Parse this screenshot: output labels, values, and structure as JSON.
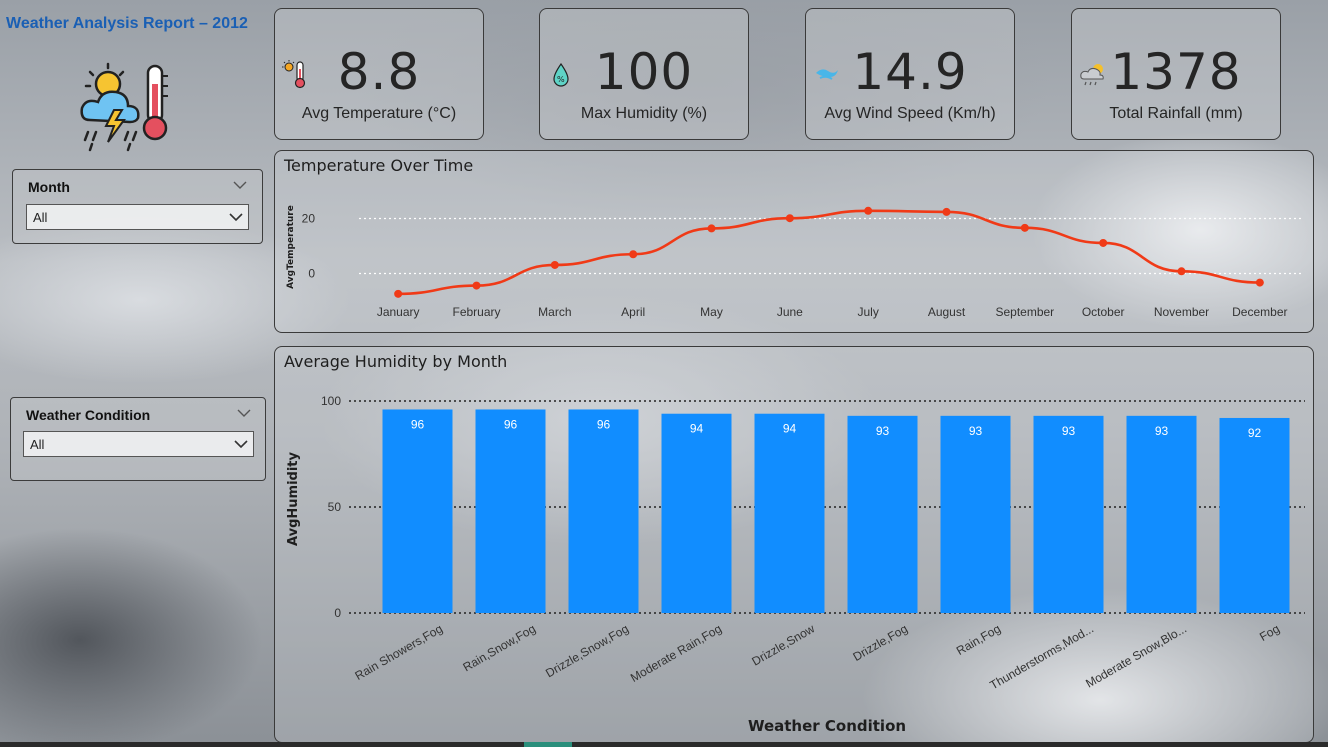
{
  "report": {
    "title": "Weather Analysis Report – 2012"
  },
  "slicers": {
    "month": {
      "title": "Month",
      "value": "All"
    },
    "weather_condition": {
      "title": "Weather Condition",
      "value": "All"
    }
  },
  "kpis": [
    {
      "value": "8.8",
      "label": "Avg Temperature (°C)",
      "icon": "thermometer-sun-icon"
    },
    {
      "value": "100",
      "label": "Max Humidity (%)",
      "icon": "humidity-drop-icon"
    },
    {
      "value": "14.9",
      "label": "Avg Wind Speed (Km/h)",
      "icon": "wind-icon"
    },
    {
      "value": "1378",
      "label": "Total Rainfall (mm)",
      "icon": "cloud-sun-rain-icon"
    }
  ],
  "charts": {
    "temperature": {
      "title": "Temperature Over Time"
    },
    "humidity": {
      "title": "Average Humidity by Month"
    }
  },
  "chart_data": [
    {
      "type": "line",
      "title": "Temperature Over Time",
      "xlabel": "",
      "ylabel": "AvgTemperature",
      "categories": [
        "January",
        "February",
        "March",
        "April",
        "May",
        "June",
        "July",
        "August",
        "September",
        "October",
        "November",
        "December"
      ],
      "values": [
        -7.4,
        -4.4,
        3.1,
        7.0,
        16.4,
        20.1,
        22.8,
        22.4,
        16.6,
        11.1,
        0.8,
        -3.3
      ],
      "yticks": [
        0,
        20
      ],
      "ylim": [
        -10,
        30
      ],
      "color": "#f03a17",
      "grid": true
    },
    {
      "type": "bar",
      "title": "Average Humidity by Month",
      "xlabel": "Weather Condition",
      "ylabel": "AvgHumidity",
      "categories": [
        "Rain Showers,Fog",
        "Rain,Snow,Fog",
        "Drizzle,Snow,Fog",
        "Moderate Rain,Fog",
        "Drizzle,Snow",
        "Drizzle,Fog",
        "Rain,Fog",
        "Thunderstorms,Mod...",
        "Moderate Snow,Blo...",
        "Fog"
      ],
      "values": [
        96,
        96,
        96,
        94,
        94,
        93,
        93,
        93,
        93,
        92
      ],
      "yticks": [
        0,
        50,
        100
      ],
      "ylim": [
        0,
        100
      ],
      "color": "#118dff",
      "grid": true
    }
  ]
}
